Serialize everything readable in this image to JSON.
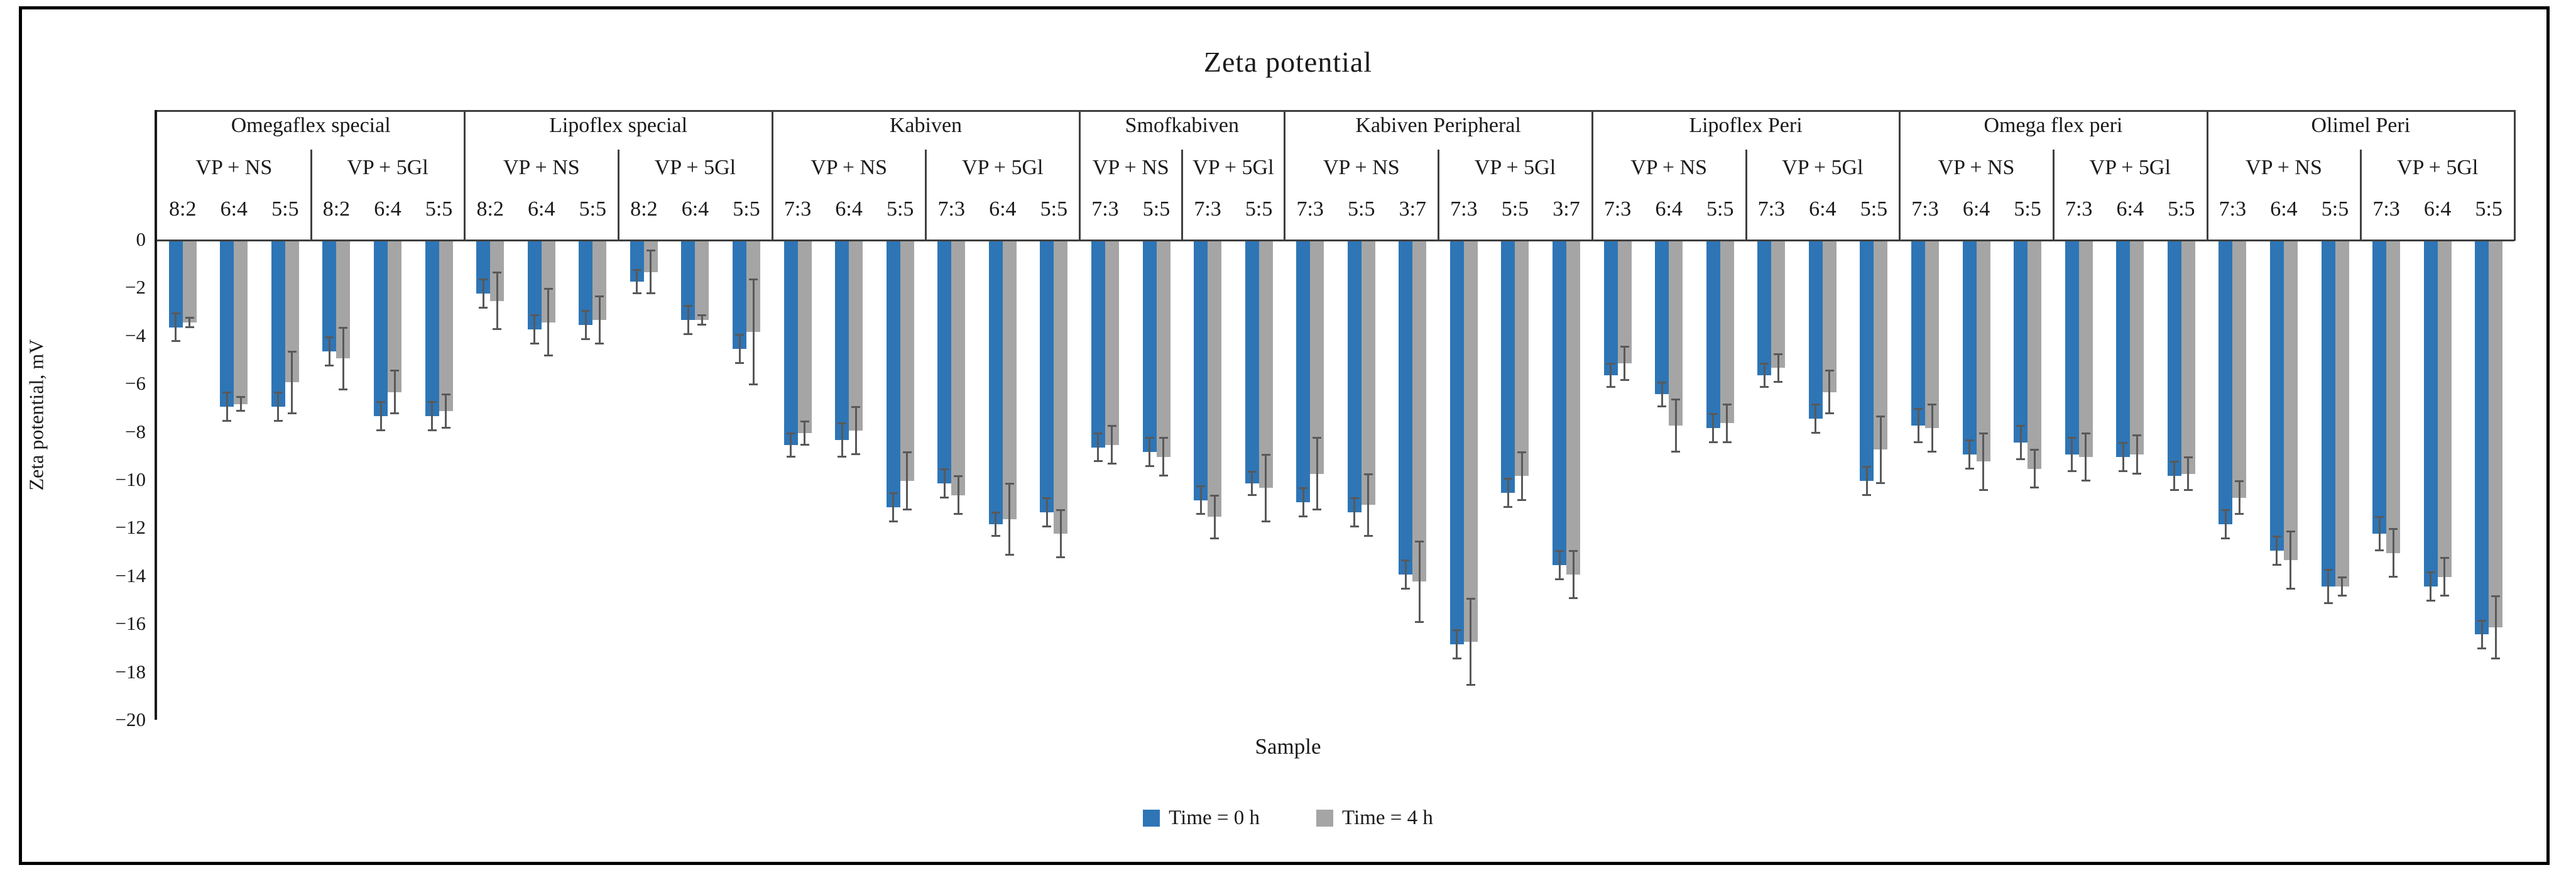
{
  "title": "Zeta potential",
  "y_axis_label": "Zeta potential, mV",
  "x_axis_label": "Sample",
  "legend": {
    "time0": {
      "label": "Time = 0 h",
      "color": "#2E75B6"
    },
    "time4": {
      "label": "Time = 4 h",
      "color": "#A5A5A5"
    }
  },
  "chart_data": {
    "type": "bar",
    "title": "Zeta potential",
    "xlabel": "Sample",
    "ylabel": "Zeta potential, mV",
    "ylim": [
      -20,
      0
    ],
    "y_ticks": [
      0,
      -2,
      -4,
      -6,
      -8,
      -10,
      -12,
      -14,
      -16,
      -18,
      -20
    ],
    "grid": false,
    "legend_position": "bottom",
    "series": [
      "Time = 0 h",
      "Time = 4 h"
    ],
    "bar_colors": [
      "#2E75B6",
      "#A5A5A5"
    ],
    "error_bar_color": "#595959",
    "groups": [
      {
        "product": "Omegaflex special",
        "subgroups": [
          {
            "label": "VP + NS",
            "ratios": [
              "8:2",
              "6:4",
              "5:5"
            ],
            "time0": [
              -3.6,
              -6.9,
              -6.9
            ],
            "time0_err": [
              0.6,
              0.6,
              0.6
            ],
            "time4": [
              -3.4,
              -6.8,
              -5.9
            ],
            "time4_err": [
              0.2,
              0.3,
              1.3
            ]
          },
          {
            "label": "VP + 5Gl",
            "ratios": [
              "8:2",
              "6:4",
              "5:5"
            ],
            "time0": [
              -4.6,
              -7.3,
              -7.3
            ],
            "time0_err": [
              0.6,
              0.6,
              0.6
            ],
            "time4": [
              -4.9,
              -6.3,
              -7.1
            ],
            "time4_err": [
              1.3,
              0.9,
              0.7
            ]
          }
        ]
      },
      {
        "product": "Lipoflex special",
        "subgroups": [
          {
            "label": "VP + NS",
            "ratios": [
              "8:2",
              "6:4",
              "5:5"
            ],
            "time0": [
              -2.2,
              -3.7,
              -3.5
            ],
            "time0_err": [
              0.6,
              0.6,
              0.6
            ],
            "time4": [
              -2.5,
              -3.4,
              -3.3
            ],
            "time4_err": [
              1.2,
              1.4,
              1.0
            ]
          },
          {
            "label": "VP + 5Gl",
            "ratios": [
              "8:2",
              "6:4",
              "5:5"
            ],
            "time0": [
              -1.7,
              -3.3,
              -4.5
            ],
            "time0_err": [
              0.5,
              0.6,
              0.6
            ],
            "time4": [
              -1.3,
              -3.3,
              -3.8
            ],
            "time4_err": [
              0.9,
              0.2,
              2.2
            ]
          }
        ]
      },
      {
        "product": "Kabiven",
        "subgroups": [
          {
            "label": "VP + NS",
            "ratios": [
              "7:3",
              "6:4",
              "5:5"
            ],
            "time0": [
              -8.5,
              -8.3,
              -11.1
            ],
            "time0_err": [
              0.5,
              0.7,
              0.6
            ],
            "time4": [
              -8.0,
              -7.9,
              -10.0
            ],
            "time4_err": [
              0.5,
              1.0,
              1.2
            ]
          },
          {
            "label": "VP + 5Gl",
            "ratios": [
              "7:3",
              "6:4",
              "5:5"
            ],
            "time0": [
              -10.1,
              -11.8,
              -11.3
            ],
            "time0_err": [
              0.6,
              0.5,
              0.6
            ],
            "time4": [
              -10.6,
              -11.6,
              -12.2
            ],
            "time4_err": [
              0.8,
              1.5,
              1.0
            ]
          }
        ]
      },
      {
        "product": "Smofkabiven",
        "subgroups": [
          {
            "label": "VP + NS",
            "ratios": [
              "7:3",
              "5:5"
            ],
            "time0": [
              -8.6,
              -8.8
            ],
            "time0_err": [
              0.6,
              0.6
            ],
            "time4": [
              -8.5,
              -9.0
            ],
            "time4_err": [
              0.8,
              0.8
            ]
          },
          {
            "label": "VP + 5Gl",
            "ratios": [
              "7:3",
              "5:5"
            ],
            "time0": [
              -10.8,
              -10.1
            ],
            "time0_err": [
              0.6,
              0.5
            ],
            "time4": [
              -11.5,
              -10.3
            ],
            "time4_err": [
              0.9,
              1.4
            ]
          }
        ]
      },
      {
        "product": "Kabiven Peripheral",
        "subgroups": [
          {
            "label": "VP + NS",
            "ratios": [
              "7:3",
              "5:5",
              "3:7"
            ],
            "time0": [
              -10.9,
              -11.3,
              -13.9
            ],
            "time0_err": [
              0.6,
              0.6,
              0.6
            ],
            "time4": [
              -9.7,
              -11.0,
              -14.2
            ],
            "time4_err": [
              1.5,
              1.3,
              1.7
            ]
          },
          {
            "label": "VP + 5Gl",
            "ratios": [
              "7:3",
              "5:5",
              "3:7"
            ],
            "time0": [
              -16.8,
              -10.5,
              -13.5
            ],
            "time0_err": [
              0.6,
              0.6,
              0.6
            ],
            "time4": [
              -16.7,
              -9.8,
              -13.9
            ],
            "time4_err": [
              1.8,
              1.0,
              1.0
            ]
          }
        ]
      },
      {
        "product": "Lipoflex Peri",
        "subgroups": [
          {
            "label": "VP + NS",
            "ratios": [
              "7:3",
              "6:4",
              "5:5"
            ],
            "time0": [
              -5.6,
              -6.4,
              -7.8
            ],
            "time0_err": [
              0.5,
              0.5,
              0.6
            ],
            "time4": [
              -5.1,
              -7.7,
              -7.6
            ],
            "time4_err": [
              0.7,
              1.1,
              0.8
            ]
          },
          {
            "label": "VP + 5Gl",
            "ratios": [
              "7:3",
              "6:4",
              "5:5"
            ],
            "time0": [
              -5.6,
              -7.4,
              -10.0
            ],
            "time0_err": [
              0.5,
              0.6,
              0.6
            ],
            "time4": [
              -5.3,
              -6.3,
              -8.7
            ],
            "time4_err": [
              0.6,
              0.9,
              1.4
            ]
          }
        ]
      },
      {
        "product": "Omega flex peri",
        "subgroups": [
          {
            "label": "VP + NS",
            "ratios": [
              "7:3",
              "6:4",
              "5:5"
            ],
            "time0": [
              -7.7,
              -8.9,
              -8.4
            ],
            "time0_err": [
              0.7,
              0.6,
              0.7
            ],
            "time4": [
              -7.8,
              -9.2,
              -9.5
            ],
            "time4_err": [
              1.0,
              1.2,
              0.8
            ]
          },
          {
            "label": "VP + 5Gl",
            "ratios": [
              "7:3",
              "6:4",
              "5:5"
            ],
            "time0": [
              -8.9,
              -9.0,
              -9.8
            ],
            "time0_err": [
              0.7,
              0.6,
              0.6
            ],
            "time4": [
              -9.0,
              -8.9,
              -9.7
            ],
            "time4_err": [
              1.0,
              0.8,
              0.7
            ]
          }
        ]
      },
      {
        "product": "Olimel Peri",
        "subgroups": [
          {
            "label": "VP + NS",
            "ratios": [
              "7:3",
              "6:4",
              "5:5"
            ],
            "time0": [
              -11.8,
              -12.9,
              -14.4
            ],
            "time0_err": [
              0.6,
              0.6,
              0.7
            ],
            "time4": [
              -10.7,
              -13.3,
              -14.4
            ],
            "time4_err": [
              0.7,
              1.2,
              0.4
            ]
          },
          {
            "label": "VP + 5Gl",
            "ratios": [
              "7:3",
              "6:4",
              "5:5"
            ],
            "time0": [
              -12.2,
              -14.4,
              -16.4
            ],
            "time0_err": [
              0.7,
              0.6,
              0.6
            ],
            "time4": [
              -13.0,
              -14.0,
              -16.1
            ],
            "time4_err": [
              1.0,
              0.8,
              1.3
            ]
          }
        ]
      }
    ]
  }
}
